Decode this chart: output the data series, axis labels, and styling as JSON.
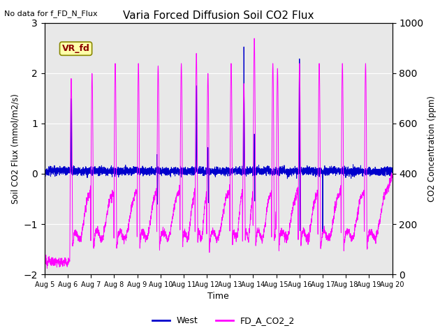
{
  "title": "Varia Forced Diffusion Soil CO2 Flux",
  "subtitle": "No data for f_FD_N_Flux",
  "xlabel": "Time",
  "ylabel_left": "Soil CO2 Flux (mmol/m2/s)",
  "ylabel_right": "CO2 Concentration (ppm)",
  "ylim_left": [
    -2.0,
    3.0
  ],
  "ylim_right": [
    0,
    1000
  ],
  "xlim_days": [
    5,
    20
  ],
  "x_tick_labels": [
    "Aug 5",
    "Aug 6",
    "Aug 7",
    "Aug 8",
    "Aug 9",
    "Aug 10",
    "Aug 11",
    "Aug 12",
    "Aug 13",
    "Aug 14",
    "Aug 15",
    "Aug 16",
    "Aug 17",
    "Aug 18",
    "Aug 19",
    "Aug 20"
  ],
  "legend_entries": [
    "West",
    "FD_A_CO2_2"
  ],
  "legend_colors": [
    "#0000cc",
    "#ff00ff"
  ],
  "background_color": "#e8e8e8",
  "vr_fd_label": "VR_fd",
  "vr_fd_bg": "#ffffaa",
  "vr_fd_border": "#888800",
  "grid_color": "#ffffff",
  "west_base_mean": 0.05,
  "west_base_std": 0.04,
  "co2_floor_ppm": 50,
  "co2_peak_ppm": 900,
  "cycle_period_days": 1.05,
  "spike_positions": [
    6.15,
    7.05,
    8.05,
    9.05,
    9.9,
    10.9,
    11.55,
    12.05,
    13.05,
    13.6,
    14.05,
    14.85,
    15.05,
    16.0,
    16.85,
    17.85,
    18.85
  ],
  "west_spike_pos": [
    6.15,
    9.85,
    11.55,
    12.05,
    13.6,
    14.05,
    16.0
  ],
  "west_spike_heights": [
    1.5,
    0.4,
    1.7,
    0.5,
    2.5,
    0.75,
    2.2
  ],
  "west_spike_neg": [
    9.87,
    12.07,
    14.07,
    16.02,
    17.0
  ],
  "west_spike_neg_heights": [
    -0.65,
    -0.65,
    -0.6,
    -1.2,
    -1.2
  ]
}
